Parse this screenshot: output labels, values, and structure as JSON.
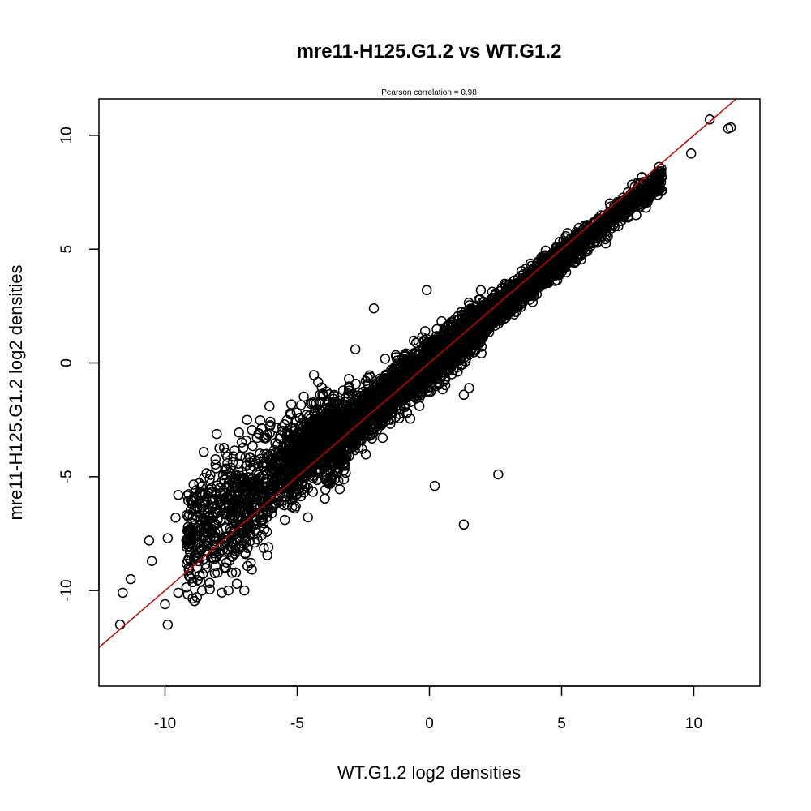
{
  "chart_data": {
    "type": "scatter",
    "title": "mre11-H125.G1.2 vs WT.G1.2",
    "subtitle": "Pearson correlation =  0.98",
    "xlabel": "WT.G1.2 log2 densities",
    "ylabel": "mre11-H125.G1.2 log2 densities",
    "xlim": [
      -12.5,
      12.5
    ],
    "ylim": [
      -14.2,
      11.6
    ],
    "xticks": [
      -10,
      -5,
      0,
      5,
      10
    ],
    "yticks": [
      -10,
      -5,
      0,
      5,
      10
    ],
    "tick_labels_x": [
      "-10",
      "-5",
      "0",
      "5",
      "10"
    ],
    "tick_labels_y": [
      "-10",
      "-5",
      "0",
      "5",
      "10"
    ],
    "marker": "open-circle",
    "colors": {
      "points": "#000000",
      "fit_line": "#cc0000",
      "background": "#ffffff"
    },
    "grid": false,
    "fit_line": {
      "slope": 1.0,
      "intercept": 0.0
    },
    "outliers": [
      {
        "x": -11.7,
        "y": -11.5
      },
      {
        "x": -11.6,
        "y": -10.1
      },
      {
        "x": -11.3,
        "y": -9.5
      },
      {
        "x": -10.6,
        "y": -7.8
      },
      {
        "x": -10.5,
        "y": -8.7
      },
      {
        "x": -10.0,
        "y": -10.6
      },
      {
        "x": -9.9,
        "y": -11.5
      },
      {
        "x": -9.9,
        "y": -7.7
      },
      {
        "x": -9.5,
        "y": -10.1
      },
      {
        "x": -9.6,
        "y": -6.8
      },
      {
        "x": -9.5,
        "y": -5.8
      },
      {
        "x": -9.1,
        "y": -9.1
      },
      {
        "x": -7.6,
        "y": -10.0
      },
      {
        "x": -7.0,
        "y": -10.0
      },
      {
        "x": -6.9,
        "y": -2.5
      },
      {
        "x": -2.8,
        "y": 0.6
      },
      {
        "x": -2.1,
        "y": 2.4
      },
      {
        "x": -0.1,
        "y": 3.2
      },
      {
        "x": 0.2,
        "y": -5.4
      },
      {
        "x": 1.3,
        "y": -7.1
      },
      {
        "x": 2.6,
        "y": -4.9
      },
      {
        "x": 1.3,
        "y": -1.4
      },
      {
        "x": 1.5,
        "y": -1.1
      },
      {
        "x": 9.9,
        "y": 9.2
      },
      {
        "x": 10.6,
        "y": 10.7
      },
      {
        "x": 11.3,
        "y": 10.3
      },
      {
        "x": 11.4,
        "y": 10.35
      }
    ]
  }
}
